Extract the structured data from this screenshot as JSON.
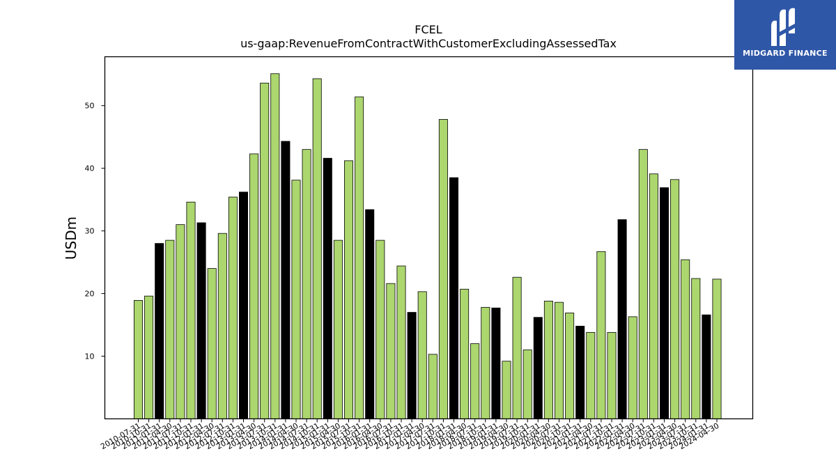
{
  "chart_data": {
    "type": "bar",
    "title": "FCEL",
    "subtitle": "us-gaap:RevenueFromContractWithCustomerExcludingAssessedTax",
    "xlabel": "",
    "ylabel": "USDm",
    "ylim": [
      0,
      57.8
    ],
    "yticks": [
      10,
      20,
      30,
      40,
      50
    ],
    "grid": false,
    "colors": {
      "quarter": "#acd66e",
      "fiscal_year_end": "#000000",
      "edge": "#000000"
    },
    "categories": [
      "2010-07-31",
      "2010-10-31",
      "2011-01-31",
      "2011-04-30",
      "2011-07-31",
      "2011-10-31",
      "2012-01-31",
      "2012-04-30",
      "2012-07-31",
      "2012-10-31",
      "2013-01-31",
      "2013-04-30",
      "2013-07-31",
      "2013-10-31",
      "2014-01-31",
      "2014-04-30",
      "2014-07-31",
      "2014-10-31",
      "2015-01-31",
      "2015-04-30",
      "2015-07-31",
      "2015-10-31",
      "2016-01-31",
      "2016-04-30",
      "2016-07-31",
      "2016-10-31",
      "2017-01-31",
      "2017-04-30",
      "2017-07-31",
      "2017-10-31",
      "2018-01-31",
      "2018-04-30",
      "2018-07-31",
      "2018-10-31",
      "2019-01-31",
      "2019-04-30",
      "2019-07-31",
      "2019-10-31",
      "2020-01-31",
      "2020-04-30",
      "2020-07-31",
      "2020-10-31",
      "2021-01-31",
      "2021-04-30",
      "2021-07-31",
      "2021-10-31",
      "2022-01-31",
      "2022-04-30",
      "2022-07-31",
      "2022-10-31",
      "2023-01-31",
      "2023-04-30",
      "2023-07-31",
      "2023-10-31",
      "2024-01-31",
      "2024-04-30"
    ],
    "values": [
      18.9,
      19.6,
      28.0,
      28.5,
      31.0,
      34.6,
      31.3,
      24.0,
      29.6,
      35.4,
      36.2,
      42.3,
      53.6,
      55.1,
      44.3,
      38.1,
      43.0,
      54.3,
      41.6,
      28.5,
      41.2,
      51.4,
      33.4,
      28.5,
      21.6,
      24.4,
      17.0,
      20.3,
      10.3,
      47.8,
      38.5,
      20.7,
      12.0,
      17.8,
      17.7,
      9.2,
      22.6,
      11.0,
      16.2,
      18.8,
      18.6,
      16.9,
      14.8,
      13.8,
      26.7,
      13.8,
      31.8,
      16.3,
      43.0,
      39.1,
      36.9,
      38.2,
      25.4,
      22.4,
      16.6,
      22.3
    ],
    "fiscal_year_end": [
      false,
      false,
      true,
      false,
      false,
      false,
      true,
      false,
      false,
      false,
      true,
      false,
      false,
      false,
      true,
      false,
      false,
      false,
      true,
      false,
      false,
      false,
      true,
      false,
      false,
      false,
      true,
      false,
      false,
      false,
      true,
      false,
      false,
      false,
      true,
      false,
      false,
      false,
      true,
      false,
      false,
      false,
      true,
      false,
      false,
      false,
      true,
      false,
      false,
      false,
      true,
      false,
      false,
      false,
      true,
      false
    ]
  },
  "logo": {
    "text": "MIDGARD FINANCE",
    "icon": "midgard-logo-icon"
  }
}
